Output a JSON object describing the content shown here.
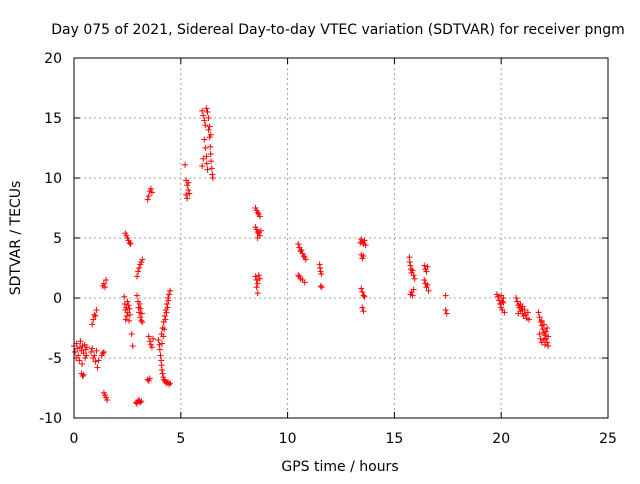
{
  "chart_data": {
    "type": "scatter",
    "title": "Day 075 of 2021, Sidereal Day-to-day VTEC variation (SDTVAR) for receiver pngm",
    "xlabel": "GPS time / hours",
    "ylabel": "SDTVAR / TECUs",
    "xlim": [
      0,
      25
    ],
    "ylim": [
      -10,
      20
    ],
    "xticks": [
      0,
      5,
      10,
      15,
      20,
      25
    ],
    "yticks": [
      -10,
      -5,
      0,
      5,
      10,
      15,
      20
    ],
    "grid": true,
    "marker": "+",
    "color": "#ff0000",
    "series": [
      {
        "name": "SDTVAR",
        "points": [
          [
            0.0,
            -4.0
          ],
          [
            0.05,
            -4.5
          ],
          [
            0.1,
            -5.0
          ],
          [
            0.12,
            -3.8
          ],
          [
            0.15,
            -4.2
          ],
          [
            0.2,
            -4.8
          ],
          [
            0.25,
            -5.2
          ],
          [
            0.28,
            -4.1
          ],
          [
            0.3,
            -3.6
          ],
          [
            0.35,
            -4.4
          ],
          [
            0.38,
            -5.5
          ],
          [
            0.4,
            -4.0
          ],
          [
            0.45,
            -4.6
          ],
          [
            0.5,
            -3.9
          ],
          [
            0.52,
            -5.0
          ],
          [
            0.55,
            -4.3
          ],
          [
            0.58,
            -4.8
          ],
          [
            0.6,
            -4.1
          ],
          [
            0.35,
            -6.3
          ],
          [
            0.4,
            -6.5
          ],
          [
            0.45,
            -6.4
          ],
          [
            0.8,
            -4.5
          ],
          [
            0.85,
            -4.2
          ],
          [
            0.9,
            -5.0
          ],
          [
            0.95,
            -4.8
          ],
          [
            1.0,
            -5.3
          ],
          [
            1.05,
            -4.4
          ],
          [
            1.1,
            -5.8
          ],
          [
            1.15,
            -5.2
          ],
          [
            0.85,
            -2.2
          ],
          [
            0.9,
            -1.8
          ],
          [
            0.95,
            -1.4
          ],
          [
            1.0,
            -1.5
          ],
          [
            1.05,
            -1.0
          ],
          [
            1.3,
            -4.8
          ],
          [
            1.35,
            -4.6
          ],
          [
            1.4,
            -4.5
          ],
          [
            1.35,
            1.0
          ],
          [
            1.4,
            1.2
          ],
          [
            1.45,
            0.9
          ],
          [
            1.5,
            1.5
          ],
          [
            1.4,
            -7.9
          ],
          [
            1.45,
            -8.1
          ],
          [
            1.5,
            -8.3
          ],
          [
            1.55,
            -8.5
          ],
          [
            2.35,
            0.1
          ],
          [
            2.38,
            -0.5
          ],
          [
            2.4,
            -1.0
          ],
          [
            2.42,
            -1.8
          ],
          [
            2.45,
            -0.8
          ],
          [
            2.48,
            -1.5
          ],
          [
            2.5,
            -0.3
          ],
          [
            2.52,
            -1.2
          ],
          [
            2.55,
            -0.6
          ],
          [
            2.58,
            -1.9
          ],
          [
            2.6,
            -0.9
          ],
          [
            2.62,
            -1.4
          ],
          [
            2.4,
            5.4
          ],
          [
            2.45,
            5.2
          ],
          [
            2.5,
            5.0
          ],
          [
            2.55,
            4.8
          ],
          [
            2.6,
            4.6
          ],
          [
            2.65,
            4.5
          ],
          [
            2.7,
            -3.0
          ],
          [
            2.75,
            -4.0
          ],
          [
            2.95,
            0.2
          ],
          [
            3.0,
            -0.3
          ],
          [
            3.02,
            -0.8
          ],
          [
            3.05,
            -1.2
          ],
          [
            3.08,
            -0.5
          ],
          [
            3.1,
            -1.6
          ],
          [
            3.12,
            -0.9
          ],
          [
            3.15,
            -1.9
          ],
          [
            3.18,
            -1.3
          ],
          [
            3.2,
            -2.0
          ],
          [
            2.95,
            1.8
          ],
          [
            3.0,
            2.2
          ],
          [
            3.05,
            2.5
          ],
          [
            3.1,
            2.8
          ],
          [
            3.15,
            3.0
          ],
          [
            3.2,
            3.2
          ],
          [
            2.9,
            -8.7
          ],
          [
            2.95,
            -8.8
          ],
          [
            3.0,
            -8.6
          ],
          [
            3.05,
            -8.5
          ],
          [
            3.1,
            -8.7
          ],
          [
            3.15,
            -8.6
          ],
          [
            3.45,
            -6.8
          ],
          [
            3.5,
            -6.9
          ],
          [
            3.55,
            -6.7
          ],
          [
            3.5,
            -3.2
          ],
          [
            3.55,
            -3.6
          ],
          [
            3.6,
            -3.9
          ],
          [
            3.65,
            -4.1
          ],
          [
            3.7,
            -3.4
          ],
          [
            3.45,
            8.2
          ],
          [
            3.5,
            8.5
          ],
          [
            3.55,
            8.9
          ],
          [
            3.6,
            9.1
          ],
          [
            3.65,
            8.8
          ],
          [
            3.95,
            -3.5
          ],
          [
            4.0,
            -3.9
          ],
          [
            4.02,
            -4.3
          ],
          [
            4.05,
            -4.8
          ],
          [
            4.08,
            -5.2
          ],
          [
            4.1,
            -5.6
          ],
          [
            4.12,
            -6.0
          ],
          [
            4.15,
            -6.3
          ],
          [
            4.18,
            -6.6
          ],
          [
            4.2,
            -6.8
          ],
          [
            4.25,
            -6.9
          ],
          [
            4.3,
            -7.0
          ],
          [
            4.35,
            -7.1
          ],
          [
            4.4,
            -7.0
          ],
          [
            4.45,
            -7.2
          ],
          [
            4.5,
            -7.1
          ],
          [
            4.1,
            -3.0
          ],
          [
            4.15,
            -2.5
          ],
          [
            4.2,
            -2.0
          ],
          [
            4.25,
            -1.5
          ],
          [
            4.3,
            -1.0
          ],
          [
            4.35,
            -0.5
          ],
          [
            4.4,
            0.0
          ],
          [
            4.45,
            0.3
          ],
          [
            4.5,
            0.6
          ],
          [
            4.12,
            -3.8
          ],
          [
            4.18,
            -3.2
          ],
          [
            4.22,
            -2.6
          ],
          [
            4.28,
            -1.8
          ],
          [
            4.33,
            -1.2
          ],
          [
            4.38,
            -0.8
          ],
          [
            4.42,
            -0.2
          ],
          [
            5.2,
            11.1
          ],
          [
            5.25,
            9.8
          ],
          [
            5.3,
            9.4
          ],
          [
            5.35,
            9.0
          ],
          [
            5.4,
            8.7
          ],
          [
            5.3,
            8.3
          ],
          [
            5.25,
            8.6
          ],
          [
            5.35,
            9.6
          ],
          [
            6.0,
            15.6
          ],
          [
            6.05,
            15.2
          ],
          [
            6.1,
            14.8
          ],
          [
            6.15,
            14.4
          ],
          [
            6.2,
            15.8
          ],
          [
            6.25,
            15.5
          ],
          [
            6.3,
            14.0
          ],
          [
            6.35,
            13.4
          ],
          [
            6.38,
            12.6
          ],
          [
            6.4,
            12.0
          ],
          [
            6.42,
            11.4
          ],
          [
            6.45,
            10.8
          ],
          [
            6.48,
            10.3
          ],
          [
            6.5,
            10.0
          ],
          [
            6.1,
            13.2
          ],
          [
            6.15,
            12.5
          ],
          [
            6.2,
            11.8
          ],
          [
            6.22,
            11.2
          ],
          [
            6.25,
            10.7
          ],
          [
            6.05,
            11.6
          ],
          [
            6.0,
            11.0
          ],
          [
            6.3,
            15.0
          ],
          [
            6.35,
            14.3
          ],
          [
            6.4,
            13.6
          ],
          [
            8.5,
            7.5
          ],
          [
            8.55,
            7.3
          ],
          [
            8.6,
            7.1
          ],
          [
            8.65,
            7.0
          ],
          [
            8.7,
            6.8
          ],
          [
            8.5,
            5.9
          ],
          [
            8.55,
            5.7
          ],
          [
            8.6,
            5.5
          ],
          [
            8.65,
            5.4
          ],
          [
            8.7,
            5.2
          ],
          [
            8.75,
            5.6
          ],
          [
            8.6,
            5.0
          ],
          [
            8.5,
            1.8
          ],
          [
            8.55,
            1.5
          ],
          [
            8.6,
            1.2
          ],
          [
            8.65,
            1.9
          ],
          [
            8.7,
            1.6
          ],
          [
            8.55,
            0.9
          ],
          [
            8.6,
            0.4
          ],
          [
            10.5,
            4.5
          ],
          [
            10.55,
            4.2
          ],
          [
            10.6,
            3.9
          ],
          [
            10.65,
            4.0
          ],
          [
            10.7,
            3.7
          ],
          [
            10.75,
            3.5
          ],
          [
            10.8,
            3.4
          ],
          [
            10.85,
            3.2
          ],
          [
            10.5,
            1.9
          ],
          [
            10.55,
            1.8
          ],
          [
            10.6,
            1.6
          ],
          [
            10.7,
            1.5
          ],
          [
            10.8,
            1.3
          ],
          [
            11.5,
            2.8
          ],
          [
            11.52,
            2.5
          ],
          [
            11.55,
            2.2
          ],
          [
            11.58,
            2.0
          ],
          [
            11.55,
            1.0
          ],
          [
            11.6,
            0.9
          ],
          [
            13.4,
            4.6
          ],
          [
            13.45,
            4.9
          ],
          [
            13.5,
            4.7
          ],
          [
            13.55,
            4.5
          ],
          [
            13.6,
            4.8
          ],
          [
            13.65,
            4.4
          ],
          [
            13.45,
            3.6
          ],
          [
            13.5,
            3.3
          ],
          [
            13.55,
            3.5
          ],
          [
            13.45,
            0.8
          ],
          [
            13.5,
            0.5
          ],
          [
            13.55,
            0.2
          ],
          [
            13.6,
            0.1
          ],
          [
            13.5,
            -0.8
          ],
          [
            13.55,
            -1.1
          ],
          [
            15.7,
            3.4
          ],
          [
            15.72,
            3.0
          ],
          [
            15.75,
            2.7
          ],
          [
            15.78,
            2.4
          ],
          [
            15.8,
            2.1
          ],
          [
            15.85,
            2.3
          ],
          [
            15.9,
            1.9
          ],
          [
            15.95,
            1.6
          ],
          [
            15.75,
            0.3
          ],
          [
            15.8,
            0.5
          ],
          [
            15.85,
            0.2
          ],
          [
            15.9,
            0.7
          ],
          [
            16.4,
            2.7
          ],
          [
            16.45,
            2.4
          ],
          [
            16.5,
            2.2
          ],
          [
            16.55,
            2.6
          ],
          [
            16.4,
            1.5
          ],
          [
            16.45,
            1.2
          ],
          [
            16.5,
            0.9
          ],
          [
            16.55,
            1.1
          ],
          [
            16.6,
            0.6
          ],
          [
            17.4,
            0.2
          ],
          [
            17.4,
            -1.0
          ],
          [
            17.45,
            -1.3
          ],
          [
            19.8,
            0.3
          ],
          [
            19.85,
            0.1
          ],
          [
            19.9,
            -0.2
          ],
          [
            19.95,
            -0.5
          ],
          [
            20.0,
            -0.8
          ],
          [
            20.05,
            -1.0
          ],
          [
            20.1,
            -0.4
          ],
          [
            20.15,
            -1.2
          ],
          [
            20.0,
            0.2
          ],
          [
            20.05,
            -0.3
          ],
          [
            20.1,
            0.0
          ],
          [
            20.7,
            0.0
          ],
          [
            20.75,
            -0.3
          ],
          [
            20.8,
            -0.6
          ],
          [
            20.85,
            -0.8
          ],
          [
            20.9,
            -1.1
          ],
          [
            20.95,
            -0.9
          ],
          [
            21.0,
            -1.3
          ],
          [
            21.05,
            -1.5
          ],
          [
            21.1,
            -1.0
          ],
          [
            21.15,
            -1.4
          ],
          [
            21.2,
            -1.7
          ],
          [
            21.25,
            -1.2
          ],
          [
            21.3,
            -1.8
          ],
          [
            20.8,
            -1.3
          ],
          [
            20.9,
            -0.5
          ],
          [
            21.0,
            -0.7
          ],
          [
            21.75,
            -1.2
          ],
          [
            21.8,
            -1.6
          ],
          [
            21.85,
            -2.0
          ],
          [
            21.9,
            -2.3
          ],
          [
            21.95,
            -2.6
          ],
          [
            22.0,
            -2.9
          ],
          [
            22.05,
            -3.1
          ],
          [
            22.1,
            -3.4
          ],
          [
            22.15,
            -3.7
          ],
          [
            22.2,
            -4.0
          ],
          [
            21.8,
            -3.0
          ],
          [
            21.85,
            -3.4
          ],
          [
            21.9,
            -3.7
          ],
          [
            22.0,
            -3.5
          ],
          [
            22.1,
            -2.8
          ],
          [
            22.2,
            -3.2
          ],
          [
            21.9,
            -1.9
          ],
          [
            22.0,
            -2.2
          ],
          [
            22.15,
            -2.5
          ],
          [
            22.05,
            -3.9
          ]
        ]
      }
    ]
  }
}
